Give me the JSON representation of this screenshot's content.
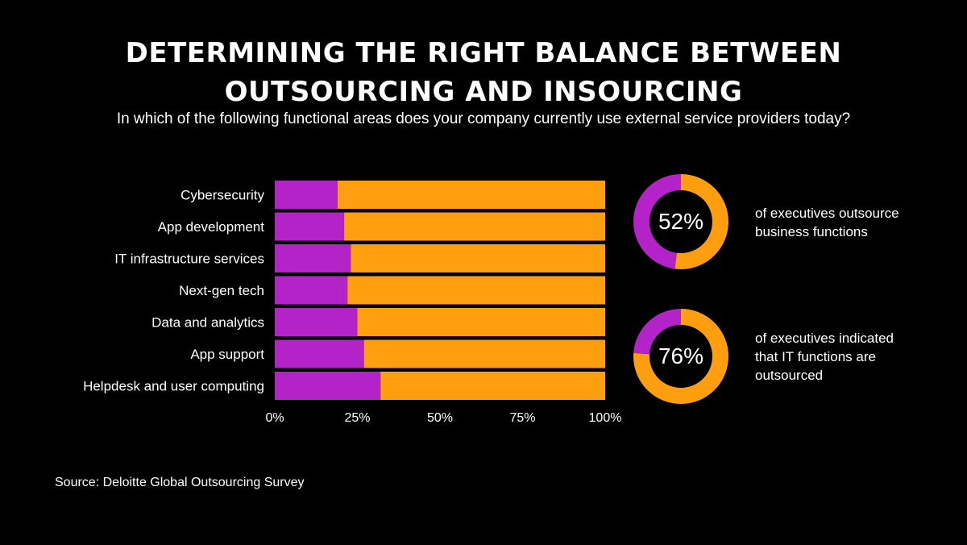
{
  "title_lines": [
    "DETERMINING THE RIGHT BALANCE BETWEEN",
    "OUTSOURCING AND INSOURCING"
  ],
  "subtitle": "In which of the following functional areas does your company currently use external service providers today?",
  "colors": {
    "purple": "#b423c8",
    "orange": "#ff9f10",
    "background": "#000000",
    "text": "#ffffff"
  },
  "chart_data": [
    {
      "type": "bar",
      "orientation": "horizontal",
      "stacked": true,
      "title": "",
      "categories": [
        "Cybersecurity",
        "App development",
        "IT infrastructure services",
        "Next-gen tech",
        "Data and analytics",
        "App support",
        "Helpdesk and user computing"
      ],
      "series": [
        {
          "color": "#b423c8",
          "values": [
            19,
            21,
            23,
            22,
            25,
            27,
            32
          ]
        },
        {
          "color": "#ff9f10",
          "values": [
            81,
            79,
            77,
            78,
            75,
            73,
            68
          ]
        }
      ],
      "xticks": [
        "0%",
        "25%",
        "50%",
        "75%",
        "100%"
      ],
      "xlim": [
        0,
        100
      ],
      "grid": false,
      "legend": "none"
    },
    {
      "type": "pie",
      "style": "donut",
      "values": [
        52,
        48
      ],
      "colors": [
        "#ff9f10",
        "#b423c8"
      ],
      "center_label": "52%",
      "caption": [
        "of executives outsource",
        "business functions"
      ]
    },
    {
      "type": "pie",
      "style": "donut",
      "values": [
        76,
        24
      ],
      "colors": [
        "#ff9f10",
        "#b423c8"
      ],
      "center_label": "76%",
      "caption": [
        "of executives indicated",
        "that IT functions are",
        "outsourced"
      ]
    }
  ],
  "source": "Source: Deloitte Global Outsourcing Survey"
}
